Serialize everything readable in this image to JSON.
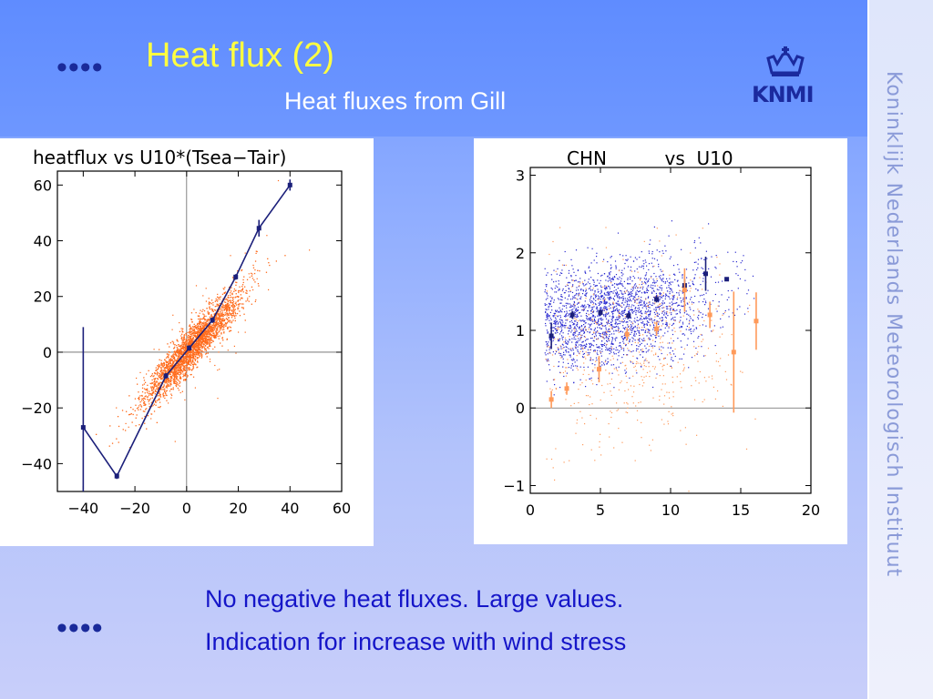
{
  "slide": {
    "title": "Heat flux (2)",
    "subtitle": "Heat fluxes from Gill",
    "bullet_top": "••••",
    "bullet_bottom": "••••",
    "text_line1": "No negative heat fluxes.   Large values.",
    "text_line2": "Indication for increase with wind stress",
    "side_text": "Koninklijk Nederlands Meteorologisch Instituut",
    "logo_text": "KNMI",
    "logo_icon": "crown-icon"
  },
  "colors": {
    "title": "#ffff40",
    "text": "#1515c8",
    "navy": "#1b1f7a",
    "orange": "#ff6a1a",
    "blue_points": "#2a2ad0",
    "light_orange": "#ff9a5a"
  },
  "chart_data": [
    {
      "type": "scatter",
      "title": "heatflux  vs  U10*(Tsea−Tair)",
      "xlim": [
        -50,
        60
      ],
      "ylim": [
        -50,
        65
      ],
      "xticks": [
        -40,
        -20,
        0,
        20,
        40,
        60
      ],
      "xtick_labels": [
        "−40",
        "−20",
        "0",
        "20",
        "40",
        "60"
      ],
      "yticks": [
        -40,
        -20,
        0,
        20,
        40,
        60
      ],
      "ytick_labels": [
        "−40",
        "−20",
        "0",
        "20",
        "40",
        "60"
      ],
      "reference_lines": {
        "x": 0,
        "y": 0
      },
      "scatter_cloud": {
        "color": "orange",
        "trend": "y ≈ x",
        "x_range": [
          -20,
          25
        ]
      },
      "series": [
        {
          "color": "navy",
          "line": true,
          "x": [
            -40,
            -27,
            -8,
            1,
            10,
            19,
            28,
            40
          ],
          "y": [
            -27,
            -44.5,
            -8.5,
            1.5,
            11.5,
            27,
            44.5,
            60
          ],
          "err": [
            36,
            1,
            1,
            1,
            1,
            1,
            3,
            2
          ]
        }
      ]
    },
    {
      "type": "scatter",
      "title": "CHN          vs  U10",
      "xlim": [
        0,
        20
      ],
      "ylim": [
        -1.1,
        3.1
      ],
      "xticks": [
        0,
        5,
        10,
        15,
        20
      ],
      "xtick_labels": [
        "0",
        "5",
        "10",
        "15",
        "20"
      ],
      "yticks": [
        -1,
        0,
        1,
        2,
        3
      ],
      "ytick_labels": [
        "−1",
        "0",
        "1",
        "2",
        "3"
      ],
      "reference_lines": {
        "y": 0
      },
      "scatter_clouds": [
        {
          "color": "blue",
          "center": [
            7,
            1.25
          ]
        },
        {
          "color": "orange",
          "center": [
            7,
            0.8
          ]
        }
      ],
      "series": [
        {
          "color": "navy",
          "line": false,
          "x": [
            1.5,
            3,
            5,
            7,
            9,
            11,
            12.5,
            14
          ],
          "y": [
            0.93,
            1.2,
            1.23,
            1.19,
            1.4,
            1.58,
            1.73,
            1.66
          ],
          "err": [
            0.17,
            0.05,
            0.04,
            0.04,
            0.04,
            0.08,
            0.22,
            0.02
          ]
        },
        {
          "color": "light_orange",
          "line": false,
          "x": [
            1.5,
            2.6,
            4.9,
            6.9,
            9,
            11,
            12.8,
            14.5,
            16.1
          ],
          "y": [
            0.11,
            0.25,
            0.5,
            0.95,
            1.02,
            1.52,
            1.2,
            0.72,
            1.12
          ],
          "err": [
            0.11,
            0.08,
            0.17,
            0.08,
            0.09,
            0.28,
            0.17,
            0.78,
            0.37
          ]
        }
      ]
    }
  ]
}
